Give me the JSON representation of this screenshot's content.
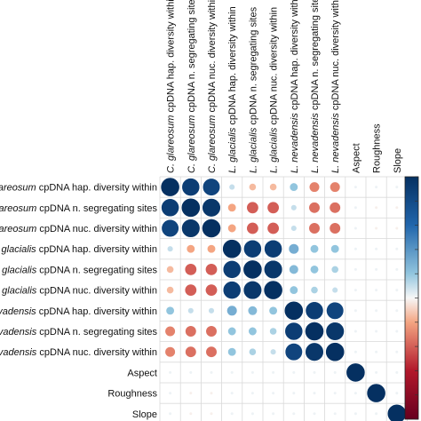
{
  "chart_data": {
    "type": "heatmap",
    "variables": [
      {
        "italic": "C. glareosum",
        "rest": " cpDNA hap. diversity within"
      },
      {
        "italic": "C. glareosum",
        "rest": " cpDNA n. segregating sites"
      },
      {
        "italic": "C. glareosum",
        "rest": " cpDNA nuc. diversity within"
      },
      {
        "italic": "L. glacialis",
        "rest": " cpDNA hap. diversity within"
      },
      {
        "italic": "L. glacialis",
        "rest": " cpDNA n. segregating sites"
      },
      {
        "italic": "L. glacialis",
        "rest": " cpDNA nuc. diversity within"
      },
      {
        "italic": "L. nevadensis",
        "rest": " cpDNA hap. diversity within"
      },
      {
        "italic": "L. nevadensis",
        "rest": " cpDNA n. segregating sites"
      },
      {
        "italic": "L. nevadensis",
        "rest": " cpDNA nuc. diversity within"
      },
      {
        "italic": "",
        "rest": "Aspect"
      },
      {
        "italic": "",
        "rest": "Roughness"
      },
      {
        "italic": "",
        "rest": "Slope"
      }
    ],
    "matrix": [
      [
        1,
        0.9,
        0.85,
        0.1,
        -0.15,
        -0.15,
        0.2,
        -0.3,
        -0.3,
        0.02,
        0.02,
        0.02
      ],
      [
        0.9,
        1,
        0.95,
        -0.2,
        -0.4,
        -0.4,
        0.1,
        -0.35,
        -0.35,
        0.02,
        -0.02,
        -0.02
      ],
      [
        0.85,
        0.95,
        1,
        -0.2,
        -0.4,
        -0.4,
        0.1,
        -0.35,
        -0.35,
        0.02,
        -0.02,
        -0.02
      ],
      [
        0.1,
        -0.2,
        -0.2,
        1,
        0.9,
        0.9,
        0.3,
        0.2,
        0.2,
        0.02,
        0.02,
        0.02
      ],
      [
        -0.15,
        -0.4,
        -0.4,
        0.9,
        1,
        0.95,
        0.25,
        0.2,
        0.15,
        0.02,
        0.02,
        0.02
      ],
      [
        -0.15,
        -0.4,
        -0.4,
        0.9,
        0.95,
        1,
        0.2,
        0.15,
        0.1,
        0.02,
        0.02,
        0.02
      ],
      [
        0.2,
        0.1,
        0.1,
        0.3,
        0.25,
        0.2,
        1,
        0.9,
        0.85,
        0.02,
        0.02,
        0.02
      ],
      [
        -0.3,
        -0.35,
        -0.35,
        0.2,
        0.2,
        0.15,
        0.9,
        1,
        0.95,
        0.02,
        0.02,
        0.02
      ],
      [
        -0.3,
        -0.35,
        -0.35,
        0.2,
        0.15,
        0.1,
        0.85,
        0.95,
        1,
        0.02,
        0.02,
        0.02
      ],
      [
        0.02,
        0.02,
        0.02,
        0.02,
        0.02,
        0.02,
        0.02,
        0.02,
        0.02,
        1,
        0.02,
        0.02
      ],
      [
        0.02,
        -0.02,
        -0.02,
        0.02,
        0.02,
        0.02,
        0.02,
        0.02,
        0.02,
        0.02,
        1,
        0.02
      ],
      [
        0.02,
        -0.02,
        -0.02,
        0.02,
        0.02,
        0.02,
        0.02,
        0.02,
        0.02,
        0.02,
        0.02,
        1
      ]
    ],
    "value_range": [
      -1,
      1
    ],
    "color_scale": {
      "negative": "#67001f",
      "neutral": "#f7f7f7",
      "positive": "#053061"
    },
    "colorbar": {
      "placement": "right"
    },
    "grid": true
  }
}
